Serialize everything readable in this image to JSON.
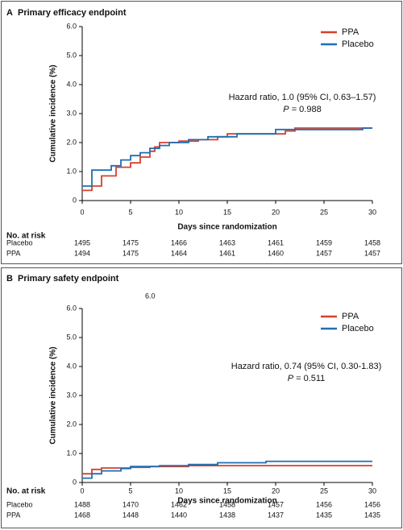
{
  "chart_data": [
    {
      "type": "line",
      "panel": "A",
      "title": "Primary efficacy endpoint",
      "x_label": "Days since randomization",
      "y_label": "Cumulative incidence (%)",
      "xlim": [
        0,
        30
      ],
      "ylim": [
        0,
        6
      ],
      "xticks": [
        0,
        5,
        10,
        15,
        20,
        25,
        30
      ],
      "yticks": [
        0,
        {
          "value": 1,
          "label": "1.0"
        },
        {
          "value": 2,
          "label": "2.0"
        },
        {
          "value": 3,
          "label": "3.0"
        },
        {
          "value": 4,
          "label": "4.0"
        },
        {
          "value": 5,
          "label": "5.0"
        },
        {
          "value": 6,
          "label": "6.0"
        }
      ],
      "series": [
        {
          "name": "PPA",
          "color": "#d6402b",
          "x": [
            0,
            1,
            2,
            3.5,
            5,
            6,
            7,
            7.5,
            8,
            10,
            12,
            14,
            15,
            20,
            21,
            22,
            30
          ],
          "values": [
            0.35,
            0.5,
            0.85,
            1.15,
            1.3,
            1.5,
            1.7,
            1.85,
            2.0,
            2.05,
            2.1,
            2.2,
            2.3,
            2.3,
            2.4,
            2.5,
            2.5
          ]
        },
        {
          "name": "Placebo",
          "color": "#1f6fb3",
          "x": [
            0,
            1,
            3,
            4,
            5,
            6,
            7,
            8,
            9,
            11,
            13,
            16,
            20,
            28,
            29,
            30
          ],
          "values": [
            0.5,
            1.05,
            1.2,
            1.4,
            1.55,
            1.65,
            1.8,
            1.9,
            2.0,
            2.1,
            2.2,
            2.3,
            2.45,
            2.45,
            2.5,
            2.5
          ]
        }
      ],
      "hazard_text": "Hazard ratio, 1.0 (95% CI, 0.63–1.57)",
      "p_symbol": "P",
      "p_text": "= 0.988",
      "risk_title": "No. at risk",
      "risk_rows": [
        {
          "name": "Placebo",
          "values": [
            1495,
            1475,
            1466,
            1463,
            1461,
            1459,
            1458
          ]
        },
        {
          "name": "PPA",
          "values": [
            1494,
            1475,
            1464,
            1461,
            1460,
            1457,
            1457
          ]
        }
      ]
    },
    {
      "type": "line",
      "panel": "B",
      "title": "Primary safety endpoint",
      "x_label": "Days since randomization",
      "y_label": "Cumulative incidence (%)",
      "xlim": [
        0,
        30
      ],
      "ylim": [
        0,
        6
      ],
      "xticks": [
        0,
        5,
        10,
        15,
        20,
        25,
        30
      ],
      "yticks": [
        0,
        {
          "value": 1,
          "label": "1.0"
        },
        {
          "value": 2,
          "label": "2.0"
        },
        {
          "value": 3,
          "label": "3.0"
        },
        {
          "value": 4,
          "label": "4.0"
        },
        {
          "value": 5,
          "label": "5.0"
        },
        {
          "value": 6,
          "label": "6.0"
        }
      ],
      "series": [
        {
          "name": "PPA",
          "color": "#d6402b",
          "x": [
            0,
            1,
            2,
            5,
            7,
            11,
            30
          ],
          "values": [
            0.3,
            0.45,
            0.5,
            0.52,
            0.55,
            0.58,
            0.58
          ]
        },
        {
          "name": "Placebo",
          "color": "#1f6fb3",
          "x": [
            0,
            1,
            2,
            4,
            5,
            8,
            11,
            14,
            19,
            30
          ],
          "values": [
            0.15,
            0.3,
            0.4,
            0.48,
            0.55,
            0.58,
            0.62,
            0.68,
            0.73,
            0.73
          ]
        }
      ],
      "hazard_text": "Hazard ratio, 0.74 (95% CI, 0.30-1.83)",
      "p_symbol": "P",
      "p_text": "= 0.511",
      "stray_label": "6.0",
      "risk_title": "No. at risk",
      "risk_rows": [
        {
          "name": "Placebo",
          "values": [
            1488,
            1470,
            1462,
            1458,
            1457,
            1456,
            1456
          ]
        },
        {
          "name": "PPA",
          "values": [
            1468,
            1448,
            1440,
            1438,
            1437,
            1435,
            1435
          ]
        }
      ]
    }
  ]
}
